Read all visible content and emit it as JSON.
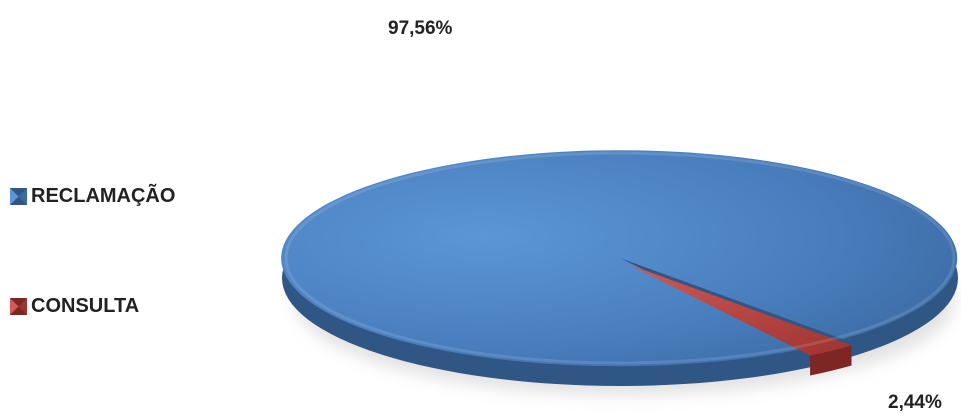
{
  "chart_data": {
    "type": "pie",
    "categories": [
      "RECLAMAÇÃO",
      "CONSULTA"
    ],
    "values": [
      97.56,
      2.44
    ],
    "labels": [
      "97,56%",
      "2,44%"
    ],
    "colors": [
      "#4f81bd",
      "#c0504d"
    ],
    "legend_position": "left",
    "three_d": true
  }
}
